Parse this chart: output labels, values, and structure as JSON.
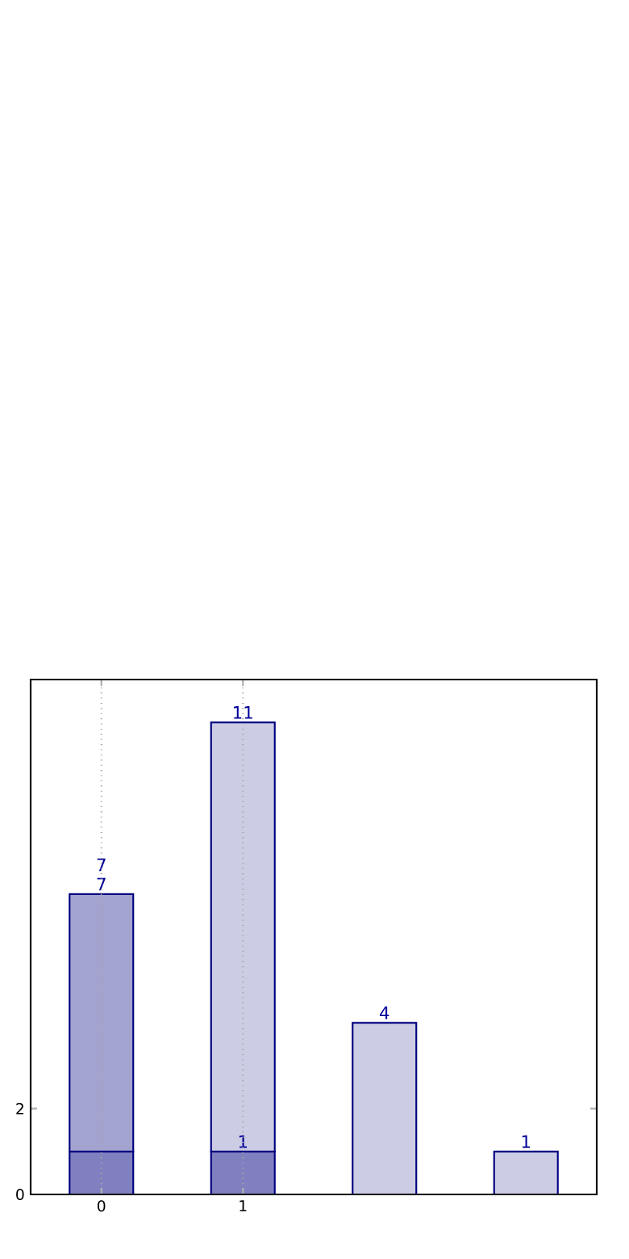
{
  "chart_data": {
    "type": "bar",
    "stacked": true,
    "categories": [
      "0",
      "1",
      null,
      null
    ],
    "series": [
      {
        "color": "#8080c0",
        "values": [
          1,
          1,
          null,
          null
        ],
        "value_labels": [
          null,
          "1",
          null,
          null
        ]
      },
      {
        "color": "#a3a3d0",
        "values": [
          6,
          null,
          null,
          null
        ]
      },
      {
        "color": "#ccccE5",
        "values": [
          null,
          10,
          4,
          1
        ]
      }
    ],
    "totals": [
      "7",
      "11",
      "4",
      "1"
    ],
    "annotations": [
      {
        "text": "7",
        "x": "0",
        "y": 7
      }
    ],
    "ylim": [
      0,
      12
    ],
    "yticks": [
      0,
      2
    ],
    "grid": "x"
  }
}
